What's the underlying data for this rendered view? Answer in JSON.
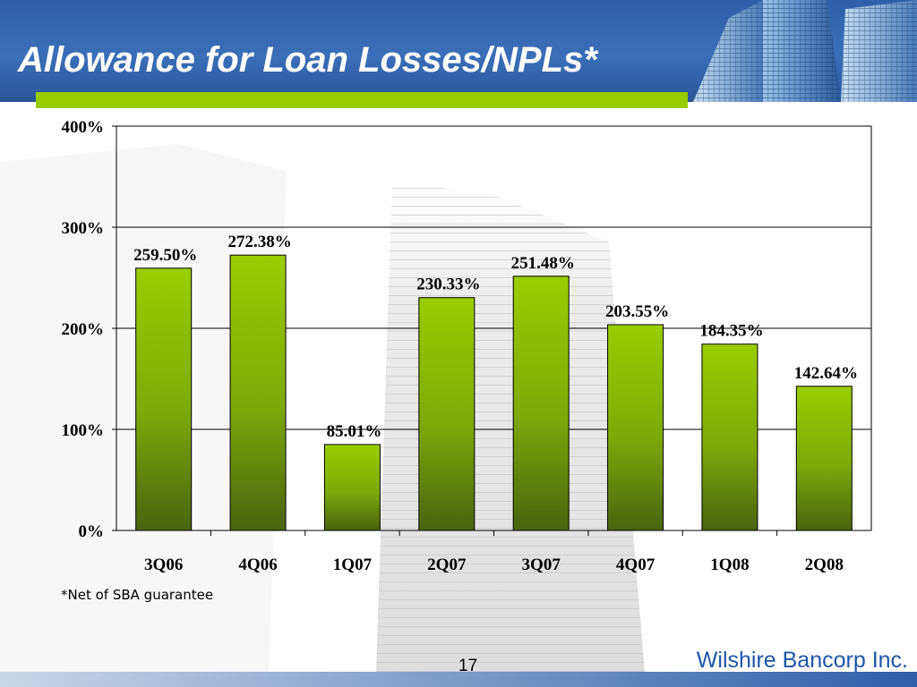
{
  "slide": {
    "title": "Allowance for Loan Losses/NPLs*",
    "footnote": "*Net of SBA guarantee",
    "page_number": "17",
    "company": "Wilshire Bancorp Inc.",
    "colors": {
      "header_blue": "#2f5fa8",
      "accent_green": "#99cc00",
      "bar_top": "#9bcc00",
      "bar_bottom": "#4a6310",
      "company_text": "#1f56a8"
    }
  },
  "chart_data": {
    "type": "bar",
    "categories": [
      "3Q06",
      "4Q06",
      "1Q07",
      "2Q07",
      "3Q07",
      "4Q07",
      "1Q08",
      "2Q08"
    ],
    "values": [
      259.5,
      272.38,
      85.01,
      230.33,
      251.48,
      203.55,
      184.35,
      142.64
    ],
    "data_labels": [
      "259.50%",
      "272.38%",
      "85.01%",
      "230.33%",
      "251.48%",
      "203.55%",
      "184.35%",
      "142.64%"
    ],
    "title": "",
    "xlabel": "",
    "ylabel": "",
    "ylim": [
      0,
      400
    ],
    "yticks": [
      0,
      100,
      200,
      300,
      400
    ],
    "ytick_labels": [
      "0%",
      "100%",
      "200%",
      "300%",
      "400%"
    ],
    "grid": true,
    "legend": false
  }
}
